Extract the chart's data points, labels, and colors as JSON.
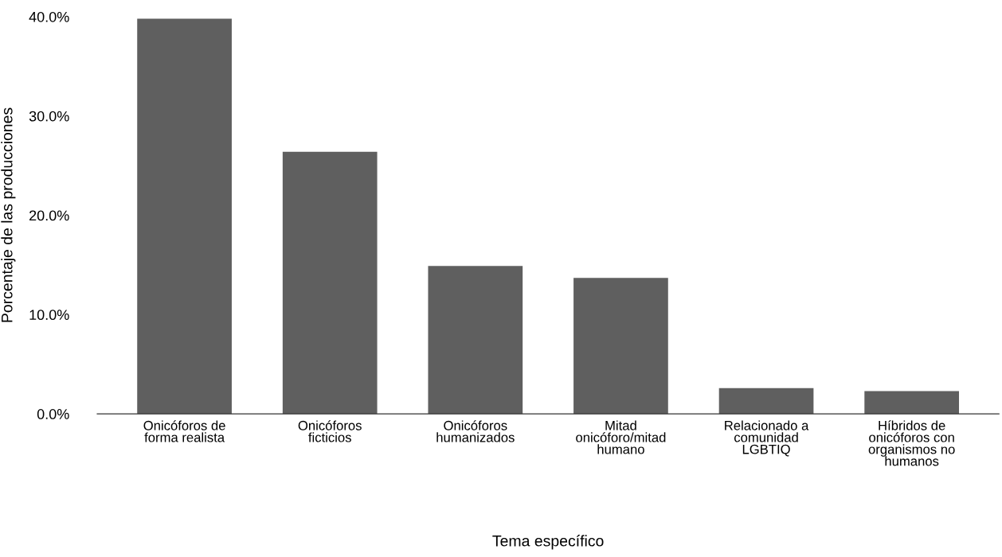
{
  "chart_data": {
    "type": "bar",
    "xlabel": "Tema específico",
    "ylabel": "Porcentaje de las producciones",
    "categories": [
      "Onicóforos de\nforma realista",
      "Onicóforos\nficticios",
      "Onicóforos\nhumanizados",
      "Mitad\nonicóforo/mitad\nhumano",
      "Relacionado a\ncomunidad\nLGBTIQ",
      "Híbridos de\nonicóforos con\norganismos no\nhumanos"
    ],
    "values": [
      39.8,
      26.4,
      14.9,
      13.7,
      2.6,
      2.3
    ],
    "color": "#5f5f5f",
    "ylim": [
      0,
      40
    ],
    "yticks": [
      {
        "value": 0,
        "label": "0.0%"
      },
      {
        "value": 10,
        "label": "10.0%"
      },
      {
        "value": 20,
        "label": "20.0%"
      },
      {
        "value": 30,
        "label": "30.0%"
      },
      {
        "value": 40,
        "label": "40.0%"
      }
    ],
    "grid": false
  }
}
